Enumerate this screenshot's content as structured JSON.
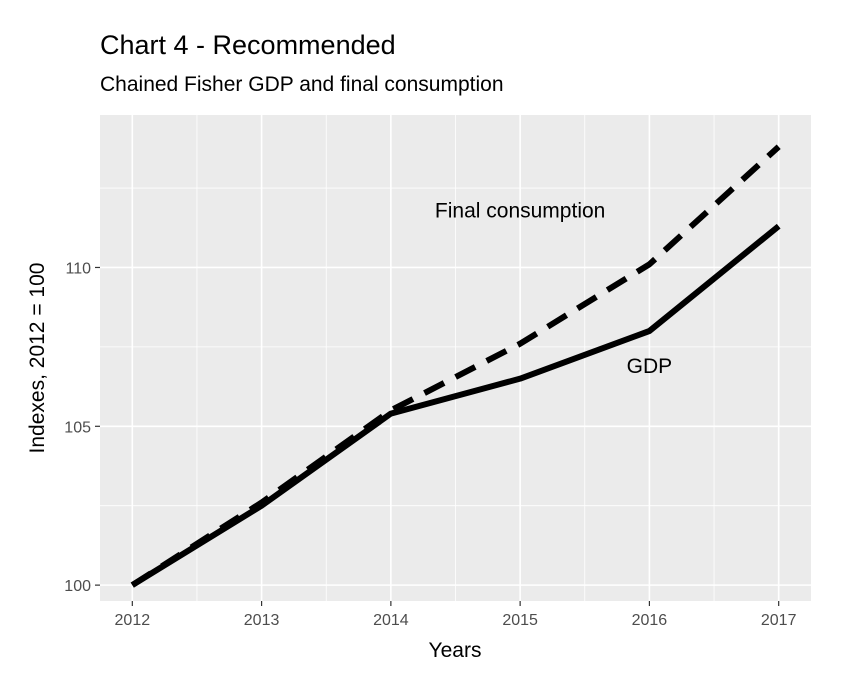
{
  "chart_data": {
    "type": "line",
    "title": "Chart 4 - Recommended",
    "subtitle": "Chained Fisher GDP and final consumption",
    "xlabel": "Years",
    "ylabel": "Indexes, 2012 = 100",
    "x": [
      2012,
      2013,
      2014,
      2015,
      2016,
      2017
    ],
    "xlim": [
      2011.75,
      2017.25
    ],
    "ylim": [
      99.5,
      114.8
    ],
    "x_ticks": [
      2012,
      2013,
      2014,
      2015,
      2016,
      2017
    ],
    "y_ticks": [
      100,
      105,
      110
    ],
    "grid": true,
    "background": "#ebebeb",
    "series": [
      {
        "values": [
          100,
          102.6,
          105.5,
          107.6,
          110.1,
          113.8
        ],
        "style": "dashed",
        "color": "#000000"
      },
      {
        "values": [
          100,
          102.5,
          105.4,
          106.5,
          108.0,
          111.3
        ],
        "style": "solid",
        "color": "#000000"
      }
    ],
    "annotations": [
      {
        "text": "Final consumption",
        "x": 2015.0,
        "y": 111.8
      },
      {
        "text": "GDP",
        "x": 2016.0,
        "y": 106.9
      }
    ]
  }
}
